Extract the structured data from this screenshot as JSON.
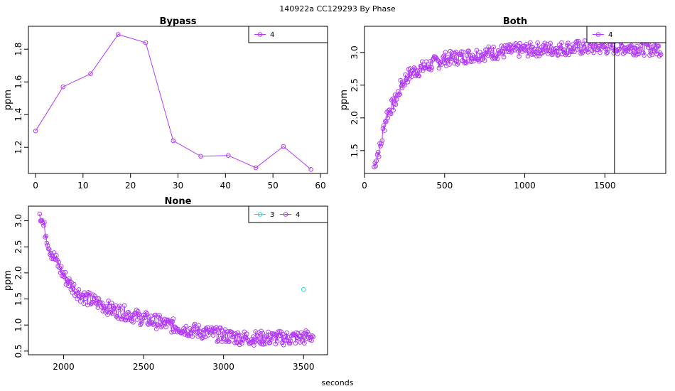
{
  "chart_data": {
    "suptitle": "140922a    CC129293   By Phase",
    "xlabel": "seconds",
    "panels": [
      {
        "title": "Bypass",
        "type": "line",
        "ylabel": "ppm",
        "xlim": [
          -1.5,
          61.5
        ],
        "ylim": [
          1.04,
          1.94
        ],
        "xticks": [
          0,
          10,
          20,
          30,
          40,
          50,
          60
        ],
        "yticks": [
          1.2,
          1.4,
          1.6,
          1.8
        ],
        "legend": {
          "placement": "top-right",
          "entries": [
            {
              "name": "4",
              "color": "#b23bfa"
            }
          ]
        },
        "series": [
          {
            "name": "4",
            "color": "#b23bfa",
            "markers": true,
            "x": [
              0,
              5.8,
              11.6,
              17.4,
              23.2,
              29.0,
              34.8,
              40.6,
              46.4,
              52.2,
              58.0
            ],
            "y": [
              1.3,
              1.57,
              1.65,
              1.89,
              1.84,
              1.24,
              1.145,
              1.15,
              1.075,
              1.205,
              1.065
            ]
          }
        ]
      },
      {
        "title": "Both",
        "type": "line",
        "ylabel": "ppm",
        "xlim": [
          0,
          1880
        ],
        "ylim": [
          1.15,
          3.4
        ],
        "xticks": [
          0,
          500,
          1000,
          1500
        ],
        "yticks": [
          1.5,
          2.0,
          2.5,
          3.0
        ],
        "legend": {
          "placement": "top-right",
          "entries": [
            {
              "name": "4",
              "color": "#b23bfa"
            }
          ]
        },
        "series": [
          {
            "name": "4",
            "color": "#b23bfa",
            "markers": true,
            "x": [
              60,
              80,
              100,
              120,
              140,
              160,
              180,
              200,
              230,
              260,
              300,
              350,
              400,
              450,
              500,
              600,
              700,
              800,
              900,
              1000,
              1100,
              1200,
              1300,
              1400,
              1500,
              1600,
              1700,
              1800,
              1850
            ],
            "y": [
              1.25,
              1.45,
              1.55,
              1.85,
              2.05,
              2.15,
              2.2,
              2.3,
              2.5,
              2.62,
              2.7,
              2.75,
              2.8,
              2.85,
              2.9,
              2.93,
              2.97,
              3.0,
              3.02,
              3.04,
              3.05,
              3.06,
              3.07,
              3.08,
              3.08,
              3.08,
              3.07,
              3.06,
              3.05
            ]
          }
        ]
      },
      {
        "title": "None",
        "type": "line",
        "ylabel": "ppm",
        "xlim": [
          1780,
          3650
        ],
        "ylim": [
          0.43,
          3.28
        ],
        "xticks": [
          2000,
          2500,
          3000,
          3500
        ],
        "yticks": [
          0.5,
          1.0,
          1.5,
          2.0,
          2.5,
          3.0
        ],
        "legend": {
          "placement": "top-right",
          "entries": [
            {
              "name": "3",
              "color": "#22dddd"
            },
            {
              "name": "4",
              "color": "#b23bfa"
            }
          ]
        },
        "series": [
          {
            "name": "3",
            "color": "#22dddd",
            "markers": true,
            "x": [
              3500
            ],
            "y": [
              1.68
            ]
          },
          {
            "name": "4",
            "color": "#b23bfa",
            "markers": true,
            "x": [
              1850,
              1870,
              1890,
              1910,
              1930,
              1960,
              2000,
              2050,
              2100,
              2150,
              2200,
              2300,
              2400,
              2500,
              2600,
              2700,
              2800,
              2900,
              3000,
              3100,
              3200,
              3300,
              3400,
              3500,
              3560
            ],
            "y": [
              3.18,
              2.95,
              2.75,
              2.5,
              2.35,
              2.2,
              1.95,
              1.75,
              1.6,
              1.5,
              1.45,
              1.3,
              1.22,
              1.12,
              1.05,
              0.97,
              0.9,
              0.85,
              0.8,
              0.76,
              0.75,
              0.75,
              0.75,
              0.76,
              0.8
            ]
          }
        ]
      }
    ]
  }
}
